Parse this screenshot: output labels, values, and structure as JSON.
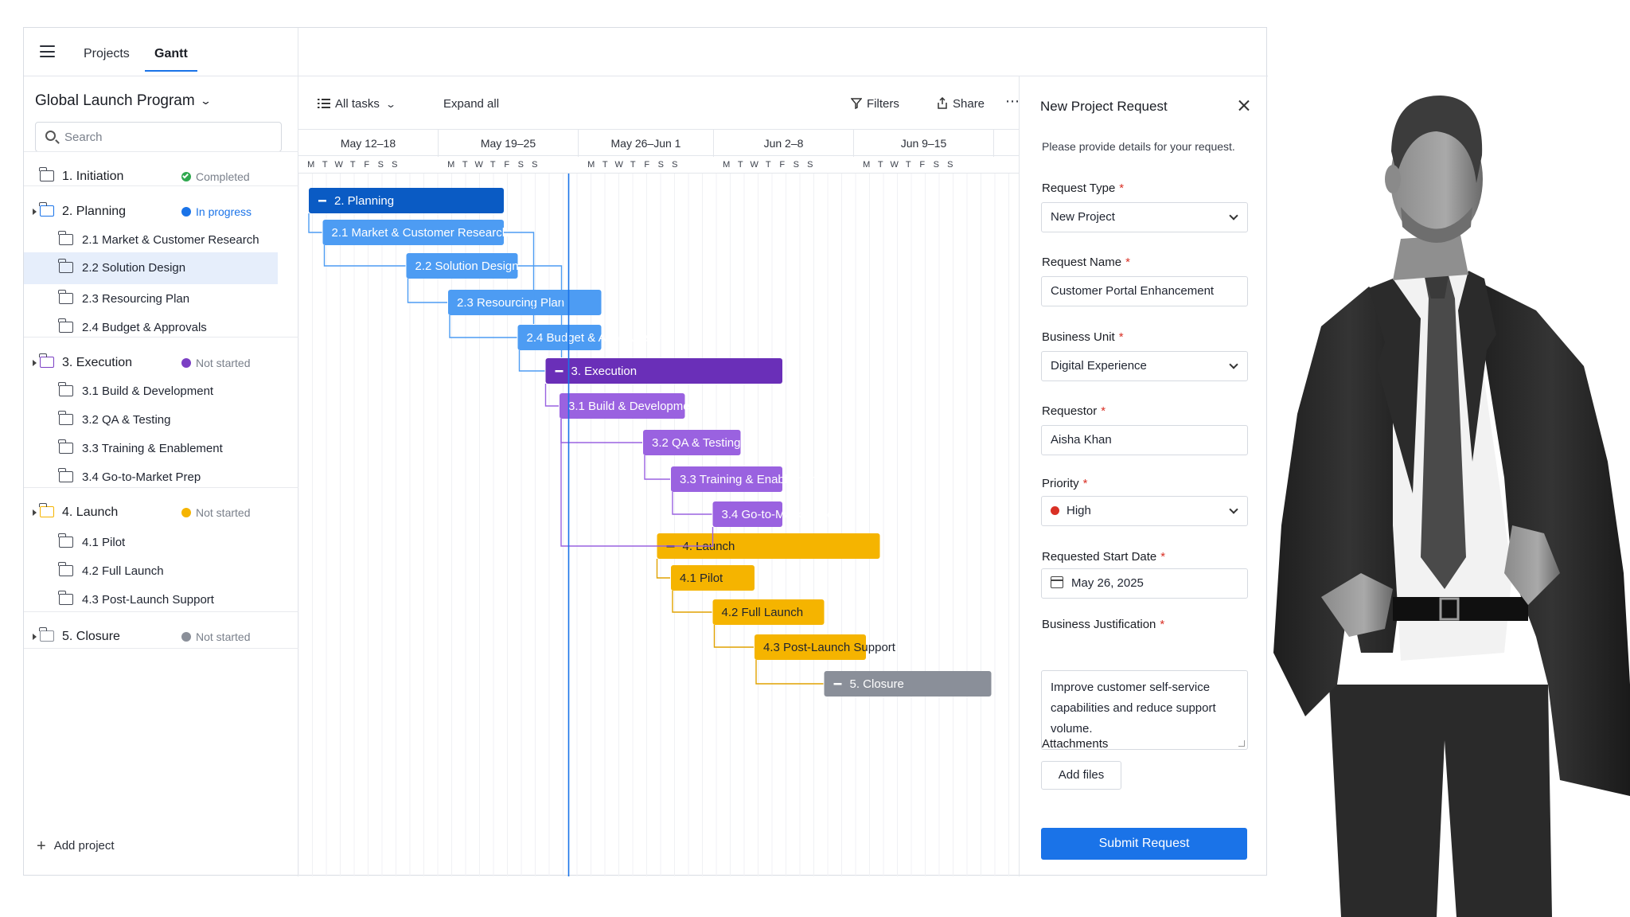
{
  "nav": {
    "tabs": [
      "Projects",
      "Gantt"
    ],
    "active_tab": "Gantt"
  },
  "program": {
    "title": "Global Launch Program"
  },
  "search": {
    "placeholder": "Search"
  },
  "tree": [
    {
      "label": "1. Initiation",
      "status": "Completed",
      "status_color": "#2fa84f",
      "level": 0,
      "expander": false
    },
    {
      "label": "2. Planning",
      "status": "In progress",
      "status_color": "#1a73e8",
      "level": 0,
      "expander": true
    },
    {
      "label": "2.1 Market & Customer Research",
      "level": 1
    },
    {
      "label": "2.2 Solution Design",
      "level": 1,
      "selected": true
    },
    {
      "label": "2.3 Resourcing Plan",
      "level": 1
    },
    {
      "label": "2.4 Budget & Approvals",
      "level": 1
    },
    {
      "label": "3. Execution",
      "status": "Not started",
      "status_color": "#7b3fc4",
      "level": 0,
      "expander": true
    },
    {
      "label": "3.1 Build & Development",
      "level": 1
    },
    {
      "label": "3.2 QA & Testing",
      "level": 1
    },
    {
      "label": "3.3 Training & Enablement",
      "level": 1
    },
    {
      "label": "3.4 Go-to-Market Prep",
      "level": 1
    },
    {
      "label": "4. Launch",
      "status": "Not started",
      "status_color": "#f5b400",
      "level": 0,
      "expander": true
    },
    {
      "label": "4.1 Pilot",
      "level": 1
    },
    {
      "label": "4.2 Full Launch",
      "level": 1
    },
    {
      "label": "4.3 Post-Launch Support",
      "level": 1
    },
    {
      "label": "5. Closure",
      "status": "Not started",
      "status_color": "#8a8f99",
      "level": 0,
      "expander": true
    }
  ],
  "add_project_label": "Add project",
  "toolbar": {
    "all_tasks": "All tasks",
    "expand_all": "Expand all",
    "filters": "Filters",
    "share": "Share",
    "more": "⋯"
  },
  "timeline": {
    "weeks": [
      "May 12–18",
      "May 19–25",
      "May 26–Jun 1",
      "Jun 2–8",
      "Jun 9–15"
    ],
    "day_letters": [
      "M",
      "T",
      "W",
      "T",
      "F",
      "S",
      "S"
    ],
    "today_marker": "May 31"
  },
  "colors": {
    "planning": "#0a5bc4",
    "planning_child": "#4d9cf3",
    "execution": "#6a2fb8",
    "execution_child": "#9a62e0",
    "launch": "#f5b400",
    "closure": "#8a8f99",
    "accent": "#1a73e8"
  },
  "gantt_tasks": [
    {
      "label": "2. Planning",
      "start": "May 12",
      "end": "May 26",
      "summary": true,
      "group": "planning"
    },
    {
      "label": "2.1 Market & Customer Research",
      "start": "May 13",
      "end": "May 26",
      "group": "planning_child"
    },
    {
      "label": "2.2 Solution Design",
      "start": "May 19",
      "end": "May 27",
      "group": "planning_child"
    },
    {
      "label": "2.3 Resourcing Plan",
      "start": "May 22",
      "end": "Jun 2",
      "group": "planning_child"
    },
    {
      "label": "2.4 Budget & Approvals",
      "start": "May 27",
      "end": "Jun 2",
      "group": "planning_child"
    },
    {
      "label": "3. Execution",
      "start": "May 29",
      "end": "Jun 15",
      "summary": true,
      "group": "execution"
    },
    {
      "label": "3.1 Build & Development",
      "start": "May 30",
      "end": "Jun 8",
      "group": "execution_child"
    },
    {
      "label": "3.2 QA & Testing",
      "start": "Jun 5",
      "end": "Jun 12",
      "group": "execution_child"
    },
    {
      "label": "3.3 Training & Enablement",
      "start": "Jun 7",
      "end": "Jun 15",
      "group": "execution_child"
    },
    {
      "label": "3.4 Go-to-Market Prep",
      "start": "Jun 10",
      "end": "Jun 15",
      "group": "execution_child"
    },
    {
      "label": "4. Launch",
      "start": "Jun 6",
      "end": "Jun 22",
      "summary": true,
      "group": "launch"
    },
    {
      "label": "4.1 Pilot",
      "start": "Jun 7",
      "end": "Jun 13",
      "group": "launch"
    },
    {
      "label": "4.2 Full Launch",
      "start": "Jun 10",
      "end": "Jun 18",
      "group": "launch"
    },
    {
      "label": "4.3 Post-Launch Support",
      "start": "Jun 13",
      "end": "Jun 21",
      "group": "launch"
    },
    {
      "label": "5. Closure",
      "start": "Jun 18",
      "end": "Jun 30",
      "summary": true,
      "group": "closure"
    }
  ],
  "form": {
    "title": "New Project Request",
    "subtitle": "Please provide details for your request.",
    "request_type": {
      "label": "Request Type",
      "value": "New Project"
    },
    "request_name": {
      "label": "Request Name",
      "value": "Customer Portal Enhancement"
    },
    "business_unit": {
      "label": "Business Unit",
      "value": "Digital Experience"
    },
    "requestor": {
      "label": "Requestor",
      "value": "Aisha Khan"
    },
    "priority": {
      "label": "Priority",
      "value": "High"
    },
    "start_date": {
      "label": "Requested Start Date",
      "value": "May 26, 2025"
    },
    "justification": {
      "label": "Business Justification",
      "value": "Improve customer self-service capabilities and reduce support volume."
    },
    "attachments": {
      "label": "Attachments",
      "button": "Add files"
    },
    "required_mark": "*",
    "submit": "Submit Request"
  }
}
